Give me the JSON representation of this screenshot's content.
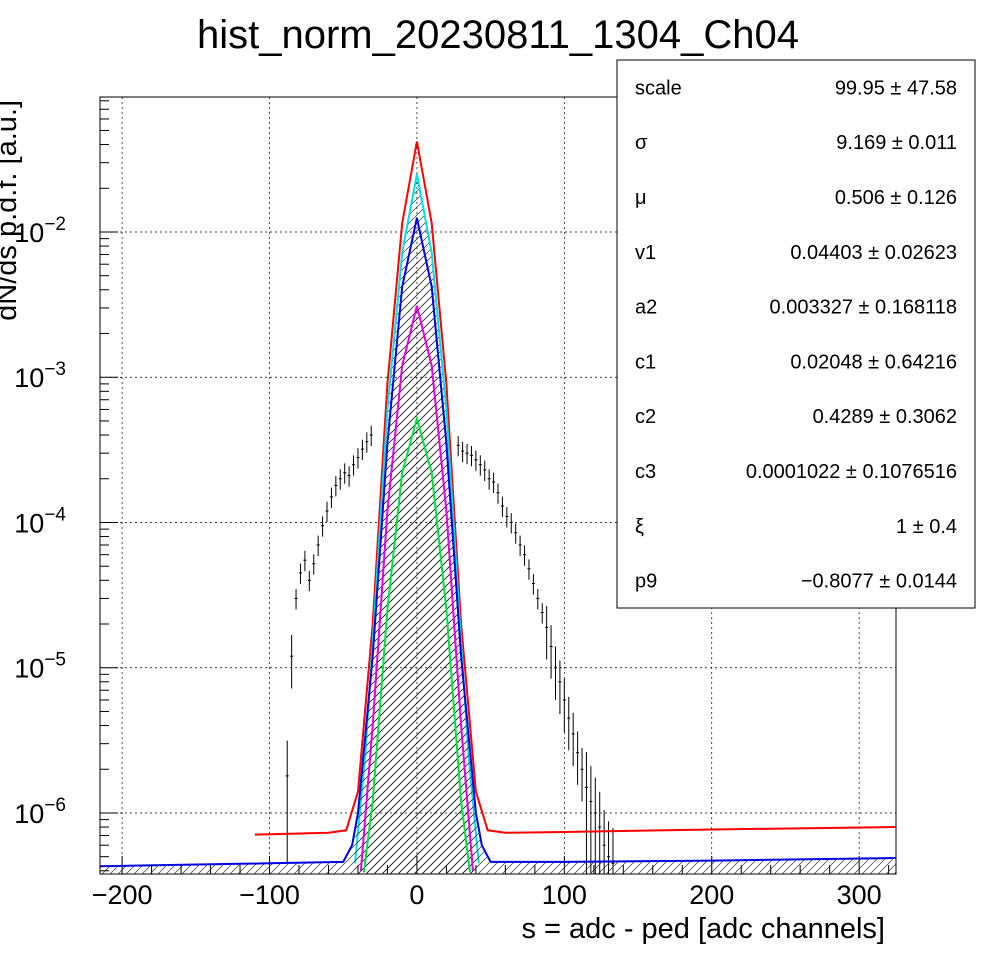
{
  "chart_data": {
    "type": "line",
    "title": "hist_norm_20230811_1304_Ch04",
    "xlabel": "s = adc - ped [adc channels]",
    "ylabel": "dN/ds p.d.f. [a.u.]",
    "xlim": [
      -215,
      325
    ],
    "ylim": [
      3.8e-07,
      0.085
    ],
    "yscale": "log",
    "grid": true,
    "x_ticks": [
      {
        "value": -200,
        "label": "−200"
      },
      {
        "value": -100,
        "label": "−100"
      },
      {
        "value": 0,
        "label": "0"
      },
      {
        "value": 100,
        "label": "100"
      },
      {
        "value": 200,
        "label": "200"
      },
      {
        "value": 300,
        "label": "300"
      }
    ],
    "y_ticks": [
      {
        "value": 1e-06,
        "base": "10",
        "exp": "−6"
      },
      {
        "value": 1e-05,
        "base": "10",
        "exp": "−5"
      },
      {
        "value": 0.0001,
        "base": "10",
        "exp": "−4"
      },
      {
        "value": 0.001,
        "base": "10",
        "exp": "−3"
      },
      {
        "value": 0.01,
        "base": "10",
        "exp": "−2"
      }
    ],
    "series": [
      {
        "color": "#ff0000",
        "x": [
          -110,
          -60,
          -48,
          -40,
          -30,
          -20,
          -10,
          0,
          10,
          20,
          30,
          40,
          48,
          60,
          100,
          200,
          325
        ],
        "y": [
          7.1e-07,
          7.3e-07,
          7.6e-07,
          1.4e-06,
          2e-05,
          0.0009,
          0.0115,
          0.042,
          0.0115,
          0.0009,
          2e-05,
          1.4e-06,
          7.6e-07,
          7.3e-07,
          7.4e-07,
          7.7e-07,
          8e-07
        ]
      },
      {
        "color": "#00e0e0",
        "x": [
          -42,
          -35,
          -30,
          -20,
          -10,
          0,
          10,
          20,
          30,
          35,
          42
        ],
        "y": [
          4.5e-07,
          2.5e-06,
          1.5e-05,
          0.0006,
          0.0072,
          0.025,
          0.0072,
          0.0006,
          1.5e-05,
          2.5e-06,
          4.5e-07
        ]
      },
      {
        "color": "#0000e0",
        "x": [
          -215,
          -100,
          -50,
          -44,
          -40,
          -30,
          -20,
          -10,
          0,
          10,
          20,
          30,
          40,
          44,
          50,
          100,
          200,
          325
        ],
        "y": [
          4.3e-07,
          4.5e-07,
          4.6e-07,
          6e-07,
          1e-06,
          1.2e-05,
          0.00035,
          0.0042,
          0.0125,
          0.0042,
          0.00035,
          1.2e-05,
          1e-06,
          6e-07,
          4.6e-07,
          4.6e-07,
          4.7e-07,
          4.9e-07
        ]
      },
      {
        "color": "#e000e0",
        "x": [
          -38,
          -30,
          -20,
          -10,
          0,
          10,
          20,
          30,
          38
        ],
        "y": [
          4e-07,
          4e-06,
          0.00012,
          0.0012,
          0.0031,
          0.0012,
          0.00012,
          4e-06,
          4e-07
        ]
      },
      {
        "color": "#00e040",
        "x": [
          -36,
          -30,
          -20,
          -10,
          0,
          10,
          20,
          30,
          36
        ],
        "y": [
          3.9e-07,
          1.2e-06,
          2.5e-05,
          0.00022,
          0.00052,
          0.00022,
          2.5e-05,
          1.2e-06,
          3.9e-07
        ]
      }
    ],
    "data_points": {
      "x": [
        -88,
        -85,
        -82,
        -79,
        -76,
        -73,
        -70,
        -67,
        -64,
        -61,
        -58,
        -55,
        -52,
        -49,
        -46,
        -43,
        -40,
        -37,
        -34,
        -31,
        28,
        31,
        34,
        37,
        40,
        43,
        46,
        49,
        52,
        55,
        58,
        61,
        64,
        67,
        70,
        73,
        76,
        79,
        82,
        85,
        88,
        91,
        94,
        97,
        100,
        103,
        106,
        109,
        112,
        115,
        118,
        121,
        124,
        127,
        130,
        133
      ],
      "y": [
        1.8e-06,
        1.2e-05,
        3e-05,
        4.5e-05,
        5.5e-05,
        4e-05,
        5.2e-05,
        7e-05,
        9.5e-05,
        0.00012,
        0.00015,
        0.00018,
        0.0002,
        0.00022,
        0.00021,
        0.00025,
        0.00028,
        0.00032,
        0.00036,
        0.0004,
        0.00034,
        0.00031,
        0.0003,
        0.00029,
        0.00027,
        0.00025,
        0.00023,
        0.0002,
        0.00019,
        0.00016,
        0.00013,
        0.00011,
        0.0001,
        8.5e-05,
        7e-05,
        6e-05,
        4.8e-05,
        3.8e-05,
        3e-05,
        2.4e-05,
        1.9e-05,
        1.4e-05,
        1e-05,
        8e-06,
        6e-06,
        4.5e-06,
        3.5e-06,
        2.6e-06,
        2e-06,
        1.5e-06,
        1.2e-06,
        1e-06,
        8e-07,
        6e-07,
        5e-07,
        4.5e-07
      ]
    },
    "stats": [
      {
        "name": "scale",
        "value": "99.95 ± 47.58"
      },
      {
        "name": "σ",
        "value": "9.169 ± 0.011"
      },
      {
        "name": "μ",
        "value": "0.506 ± 0.126"
      },
      {
        "name": "v1",
        "value": "0.04403 ± 0.02623"
      },
      {
        "name": "a2",
        "value": "0.003327 ± 0.168118"
      },
      {
        "name": "c1",
        "value": "0.02048 ± 0.64216"
      },
      {
        "name": "c2",
        "value": "0.4289 ± 0.3062"
      },
      {
        "name": "c3",
        "value": "0.0001022 ± 0.1076516"
      },
      {
        "name": "ξ",
        "value": "1 ± 0.4"
      },
      {
        "name": "p9",
        "value": "−0.8077 ± 0.0144"
      }
    ]
  }
}
